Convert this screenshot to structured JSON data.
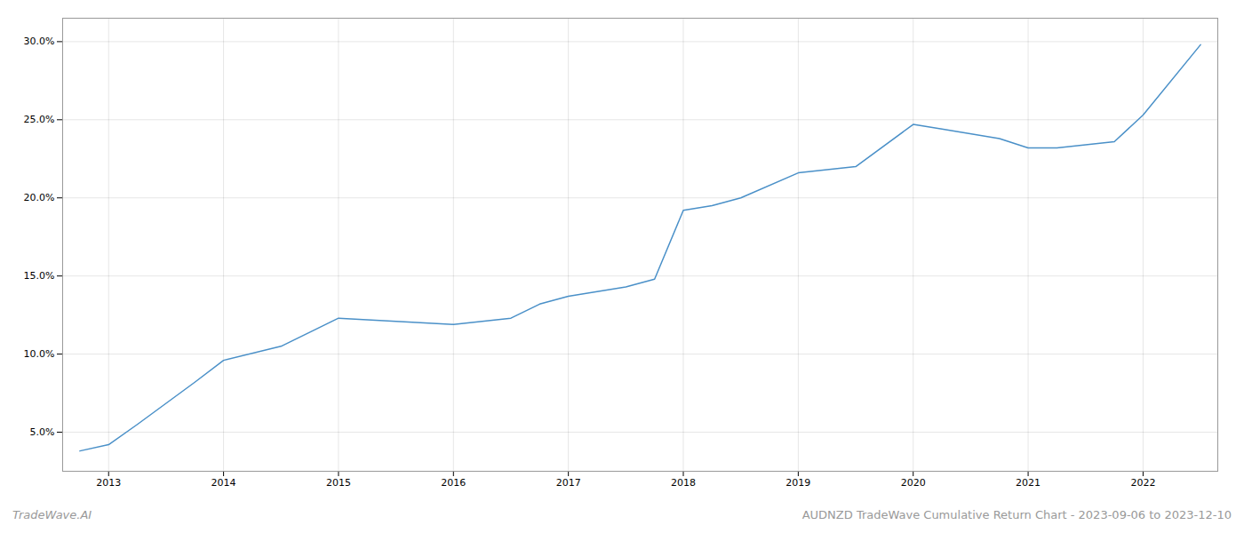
{
  "chart_data": {
    "type": "line",
    "x": [
      2012.75,
      2013.0,
      2013.25,
      2013.75,
      2014.0,
      2014.5,
      2015.0,
      2015.5,
      2016.0,
      2016.5,
      2016.75,
      2017.0,
      2017.5,
      2017.75,
      2018.0,
      2018.25,
      2018.5,
      2019.0,
      2019.5,
      2020.0,
      2020.25,
      2020.75,
      2021.0,
      2021.25,
      2021.5,
      2021.75,
      2022.0,
      2022.5
    ],
    "values": [
      0.038,
      0.042,
      0.055,
      0.082,
      0.096,
      0.105,
      0.123,
      0.121,
      0.119,
      0.123,
      0.132,
      0.137,
      0.143,
      0.148,
      0.192,
      0.195,
      0.2,
      0.216,
      0.22,
      0.247,
      0.244,
      0.238,
      0.232,
      0.232,
      0.234,
      0.236,
      0.253,
      0.298
    ],
    "color": "#4a90c8",
    "xlim": [
      2012.6,
      2022.65
    ],
    "ylim": [
      0.025,
      0.315
    ],
    "xticks": [
      2013,
      2014,
      2015,
      2016,
      2017,
      2018,
      2019,
      2020,
      2021,
      2022
    ],
    "yticks": [
      {
        "value": 0.05,
        "label": "5.0%"
      },
      {
        "value": 0.1,
        "label": "10.0%"
      },
      {
        "value": 0.15,
        "label": "15.0%"
      },
      {
        "value": 0.2,
        "label": "20.0%"
      },
      {
        "value": 0.25,
        "label": "25.0%"
      },
      {
        "value": 0.3,
        "label": "30.0%"
      }
    ],
    "grid": true,
    "annotations": [
      "TradeWave.AI",
      "AUDNZD TradeWave Cumulative Return Chart - 2023-09-06 to 2023-12-10"
    ]
  }
}
